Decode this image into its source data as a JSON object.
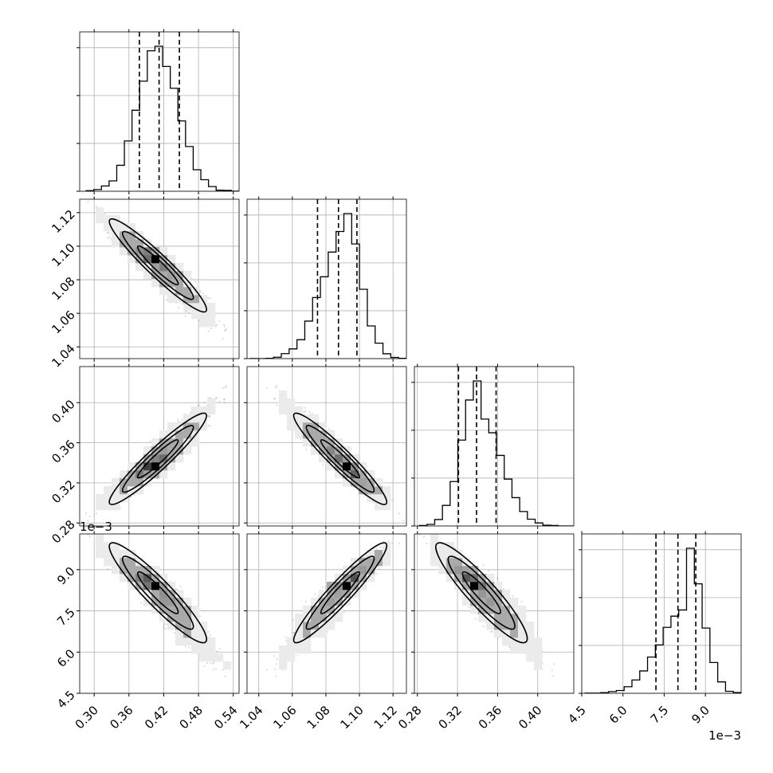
{
  "chart_data": {
    "type": "corner",
    "grid": true,
    "parameters": [
      {
        "range": [
          0.275,
          0.55
        ],
        "ticks": [
          0.3,
          0.36,
          0.42,
          0.48,
          0.54
        ],
        "tick_labels": [
          "0.30",
          "0.36",
          "0.42",
          "0.48",
          "0.54"
        ],
        "offset_label": "",
        "quantiles": [
          0.378,
          0.412,
          0.447
        ],
        "peak": 0.41,
        "left_sd": 0.034,
        "right_sd": 0.036
      },
      {
        "range": [
          1.033,
          1.128
        ],
        "ticks": [
          1.04,
          1.06,
          1.08,
          1.1,
          1.12
        ],
        "tick_labels": [
          "1.04",
          "1.06",
          "1.08",
          "1.10",
          "1.12"
        ],
        "offset_label": "",
        "quantiles": [
          1.075,
          1.0875,
          1.0985
        ],
        "peak": 1.0895,
        "left_sd": 0.013,
        "right_sd": 0.01
      },
      {
        "range": [
          0.277,
          0.436
        ],
        "ticks": [
          0.28,
          0.32,
          0.36,
          0.4
        ],
        "tick_labels": [
          "0.28",
          "0.32",
          "0.36",
          "0.40"
        ],
        "offset_label": "",
        "quantiles": [
          0.321,
          0.339,
          0.3585
        ],
        "peak": 0.342,
        "left_sd": 0.016,
        "right_sd": 0.022
      },
      {
        "range": [
          4.5,
          10.3
        ],
        "ticks": [
          4.5,
          6.0,
          7.5,
          9.0
        ],
        "tick_labels": [
          "4.5",
          "6.0",
          "7.5",
          "9.0"
        ],
        "offset_label": "1e−3",
        "quantiles": [
          7.2,
          8.0,
          8.65
        ],
        "peak": 8.3,
        "left_sd": 0.95,
        "right_sd": 0.55
      }
    ],
    "correlations": [
      {
        "row": 1,
        "col": 0,
        "rho": -0.95
      },
      {
        "row": 2,
        "col": 0,
        "rho": 0.95
      },
      {
        "row": 2,
        "col": 1,
        "rho": -0.95
      },
      {
        "row": 3,
        "col": 0,
        "rho": -0.94
      },
      {
        "row": 3,
        "col": 1,
        "rho": 0.95
      },
      {
        "row": 3,
        "col": 2,
        "rho": -0.92
      }
    ]
  }
}
